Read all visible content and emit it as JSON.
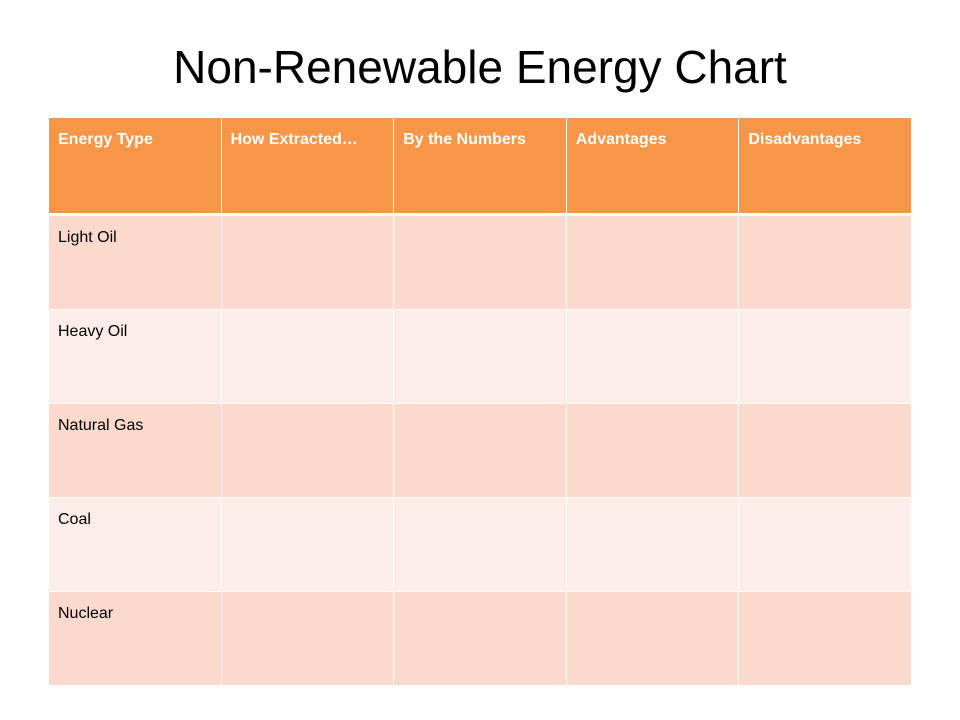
{
  "title": "Non-Renewable Energy Chart",
  "table": {
    "headers": [
      "Energy Type",
      "How Extracted…",
      "By the Numbers",
      "Advantages",
      "Disadvantages"
    ],
    "rows": [
      [
        "Light Oil",
        "",
        "",
        "",
        ""
      ],
      [
        "Heavy Oil",
        "",
        "",
        "",
        ""
      ],
      [
        "Natural Gas",
        "",
        "",
        "",
        ""
      ],
      [
        "Coal",
        "",
        "",
        "",
        ""
      ],
      [
        "Nuclear",
        "",
        "",
        "",
        ""
      ]
    ]
  },
  "colors": {
    "header_fill": "#F79646",
    "row_fill_dark": "#FBDACD",
    "row_fill_light": "#FDEDE8"
  }
}
